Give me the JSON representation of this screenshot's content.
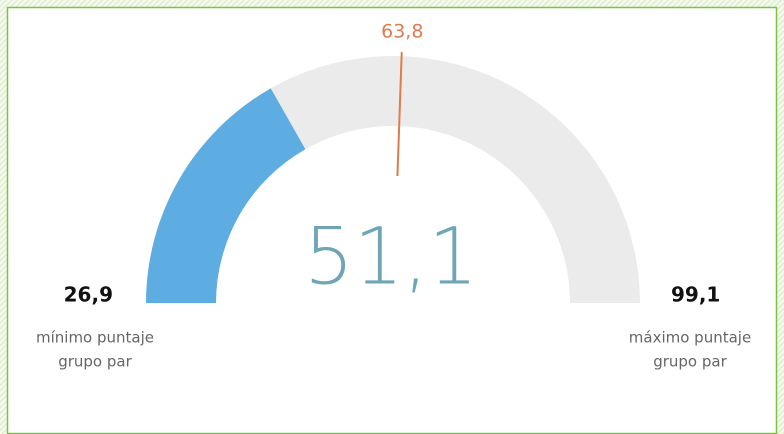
{
  "chart_data": {
    "type": "gauge",
    "values": [
      51.1
    ],
    "value_labels": [
      "51,1"
    ],
    "target": 63.8,
    "target_label": "63,8",
    "ylim": [
      26.9,
      99.1
    ],
    "yticks": [
      {
        "value": 26.9,
        "label": "26,9"
      },
      {
        "value": 99.1,
        "label": "99,1"
      }
    ],
    "annotations": [
      [
        "mínimo puntaje",
        "grupo par"
      ],
      [
        "máximo puntaje",
        "grupo par"
      ]
    ],
    "color": "#5dade2",
    "track_color": "#ebebeb",
    "target_color": "#e07b4f"
  }
}
